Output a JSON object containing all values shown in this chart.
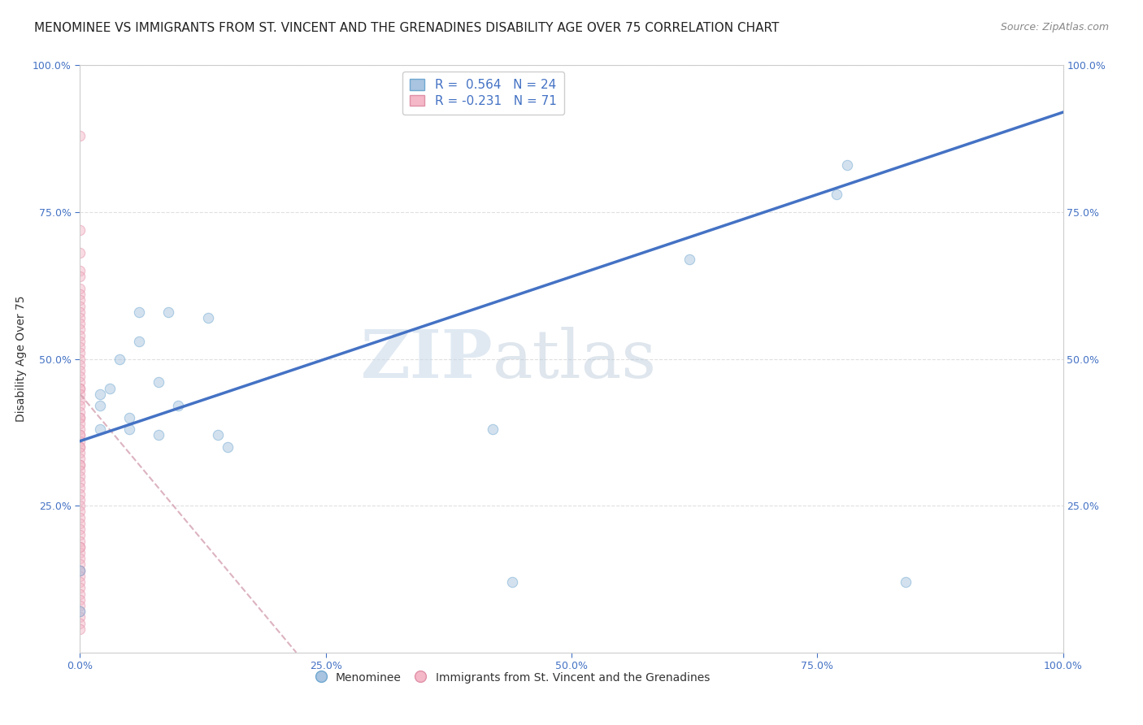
{
  "title": "MENOMINEE VS IMMIGRANTS FROM ST. VINCENT AND THE GRENADINES DISABILITY AGE OVER 75 CORRELATION CHART",
  "source": "Source: ZipAtlas.com",
  "ylabel": "Disability Age Over 75",
  "watermark_zip": "ZIP",
  "watermark_atlas": "atlas",
  "xlim": [
    0,
    1.0
  ],
  "ylim": [
    0,
    1.0
  ],
  "xtick_labels": [
    "0.0%",
    "25.0%",
    "50.0%",
    "75.0%",
    "100.0%"
  ],
  "xtick_vals": [
    0.0,
    0.25,
    0.5,
    0.75,
    1.0
  ],
  "ytick_labels": [
    "25.0%",
    "50.0%",
    "75.0%",
    "100.0%"
  ],
  "ytick_vals": [
    0.25,
    0.5,
    0.75,
    1.0
  ],
  "menominee_color": "#a8c4e0",
  "menominee_edge": "#6fa8d0",
  "immigrant_color": "#f4b8c8",
  "immigrant_edge": "#e090a8",
  "trendline_menominee_color": "#4472c4",
  "trendline_immigrant_color": "#d4a0b0",
  "legend_R1": "R =  0.564",
  "legend_N1": "N = 24",
  "legend_R2": "R = -0.231",
  "legend_N2": "N = 71",
  "menominee_x": [
    0.0,
    0.0,
    0.02,
    0.02,
    0.02,
    0.03,
    0.04,
    0.05,
    0.05,
    0.06,
    0.06,
    0.08,
    0.08,
    0.09,
    0.1,
    0.13,
    0.14,
    0.15,
    0.42,
    0.44,
    0.62,
    0.77,
    0.78,
    0.84
  ],
  "menominee_y": [
    0.07,
    0.14,
    0.42,
    0.44,
    0.38,
    0.45,
    0.5,
    0.4,
    0.38,
    0.53,
    0.58,
    0.46,
    0.37,
    0.58,
    0.42,
    0.57,
    0.37,
    0.35,
    0.38,
    0.12,
    0.67,
    0.78,
    0.83,
    0.12
  ],
  "immigrant_x": [
    0.0,
    0.0,
    0.0,
    0.0,
    0.0,
    0.0,
    0.0,
    0.0,
    0.0,
    0.0,
    0.0,
    0.0,
    0.0,
    0.0,
    0.0,
    0.0,
    0.0,
    0.0,
    0.0,
    0.0,
    0.0,
    0.0,
    0.0,
    0.0,
    0.0,
    0.0,
    0.0,
    0.0,
    0.0,
    0.0,
    0.0,
    0.0,
    0.0,
    0.0,
    0.0,
    0.0,
    0.0,
    0.0,
    0.0,
    0.0,
    0.0,
    0.0,
    0.0,
    0.0,
    0.0,
    0.0,
    0.0,
    0.0,
    0.0,
    0.0,
    0.0,
    0.0,
    0.0,
    0.0,
    0.0,
    0.0,
    0.0,
    0.0,
    0.0,
    0.0,
    0.0,
    0.0,
    0.0,
    0.0,
    0.0,
    0.0,
    0.0,
    0.0,
    0.0,
    0.0,
    0.0
  ],
  "immigrant_y": [
    0.88,
    0.72,
    0.68,
    0.65,
    0.64,
    0.62,
    0.61,
    0.6,
    0.59,
    0.58,
    0.57,
    0.56,
    0.55,
    0.54,
    0.53,
    0.52,
    0.51,
    0.5,
    0.49,
    0.48,
    0.47,
    0.46,
    0.45,
    0.45,
    0.44,
    0.43,
    0.42,
    0.41,
    0.4,
    0.4,
    0.39,
    0.38,
    0.37,
    0.37,
    0.36,
    0.35,
    0.35,
    0.34,
    0.33,
    0.32,
    0.32,
    0.31,
    0.3,
    0.29,
    0.28,
    0.27,
    0.26,
    0.25,
    0.24,
    0.23,
    0.22,
    0.21,
    0.2,
    0.19,
    0.18,
    0.17,
    0.16,
    0.15,
    0.14,
    0.14,
    0.13,
    0.12,
    0.11,
    0.1,
    0.09,
    0.08,
    0.07,
    0.06,
    0.05,
    0.04,
    0.18
  ],
  "background_color": "#ffffff",
  "grid_color": "#e0e0e0",
  "title_fontsize": 11,
  "label_fontsize": 10,
  "tick_fontsize": 9,
  "legend_fontsize": 11,
  "marker_size": 80,
  "marker_alpha": 0.5,
  "trendline_lw": 2.5,
  "imm_trend_x0": 0.0,
  "imm_trend_y0": 0.44,
  "imm_trend_x1": 0.22,
  "imm_trend_y1": 0.0,
  "men_trend_x0": 0.0,
  "men_trend_y0": 0.36,
  "men_trend_x1": 1.0,
  "men_trend_y1": 0.92
}
